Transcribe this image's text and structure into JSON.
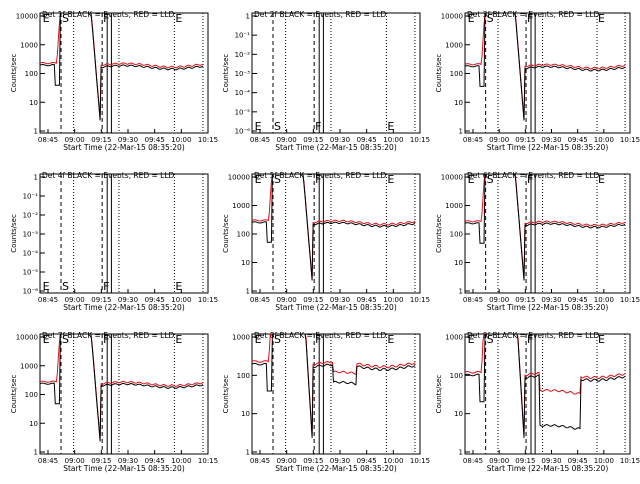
{
  "chart_data": [
    {
      "type": "line",
      "title": "Det 1f BLACK = Events, RED = LLD",
      "xlabel": "Start Time (22-Mar-15 08:35:20)",
      "ylabel": "Counts/sec",
      "yscale": "log",
      "ylim": [
        1,
        10000
      ],
      "yticks": [
        "10000",
        "1000",
        "100",
        "10",
        "1"
      ],
      "xticks": [
        "08:45",
        "09:00",
        "09:15",
        "09:30",
        "09:45",
        "10:00",
        "10:15"
      ],
      "xlim": [
        0,
        100
      ],
      "markers": [
        "E",
        "S",
        "F",
        "E"
      ],
      "series": []
    },
    {
      "type": "line",
      "title": "Det 2f BLACK = Events, RED = LLD",
      "xlabel": "Start Time (22-Mar-15 08:35:20)",
      "ylabel": "Counts/sec",
      "yscale": "log",
      "ylim": [
        1e-06,
        1
      ],
      "yticks": [
        "1",
        "10⁻¹",
        "10⁻²",
        "10⁻³",
        "10⁻⁴",
        "10⁻⁵",
        "10⁻⁶"
      ],
      "xticks": [
        "08:45",
        "09:00",
        "09:15",
        "09:30",
        "09:45",
        "10:00",
        "10:15"
      ],
      "xlim": [
        0,
        100
      ],
      "markers": [
        "E",
        "S",
        "F",
        "E"
      ],
      "series": []
    },
    {
      "type": "line",
      "title": "Det 3f BLACK = Events, RED = LLD",
      "xlabel": "Start Time (22-Mar-15 08:35:20)",
      "ylabel": "Counts/sec",
      "yscale": "log",
      "ylim": [
        1,
        10000
      ],
      "yticks": [
        "10000",
        "1000",
        "100",
        "10",
        "1"
      ],
      "xticks": [
        "08:45",
        "09:00",
        "09:15",
        "09:30",
        "09:45",
        "10:00",
        "10:15"
      ],
      "xlim": [
        0,
        100
      ],
      "markers": [
        "E",
        "S",
        "F",
        "E"
      ],
      "series": []
    },
    {
      "type": "line",
      "title": "Det 4f BLACK = Events, RED = LLD",
      "xlabel": "Start Time (22-Mar-15 08:35:20)",
      "ylabel": "Counts/sec",
      "yscale": "log",
      "ylim": [
        1e-06,
        1
      ],
      "yticks": [
        "1",
        "10⁻¹",
        "10⁻²",
        "10⁻³",
        "10⁻⁴",
        "10⁻⁵",
        "10⁻⁶"
      ],
      "xticks": [
        "08:45",
        "09:00",
        "09:15",
        "09:30",
        "09:45",
        "10:00",
        "10:15"
      ],
      "xlim": [
        0,
        100
      ],
      "markers": [
        "E",
        "S",
        "F",
        "E"
      ],
      "series": []
    },
    {
      "type": "line",
      "title": "Det 5f BLACK = Events, RED = LLD",
      "xlabel": "Start Time (22-Mar-15 08:35:20)",
      "ylabel": "Counts/sec",
      "yscale": "log",
      "ylim": [
        1,
        10000
      ],
      "yticks": [
        "10000",
        "1000",
        "100",
        "10",
        "1"
      ],
      "xticks": [
        "08:45",
        "09:00",
        "09:15",
        "09:30",
        "09:45",
        "10:00",
        "10:15"
      ],
      "xlim": [
        0,
        100
      ],
      "markers": [
        "E",
        "S",
        "F",
        "E"
      ],
      "series": []
    },
    {
      "type": "line",
      "title": "Det 6f BLACK = Events, RED = LLD",
      "xlabel": "Start Time (22-Mar-15 08:35:20)",
      "ylabel": "Counts/sec",
      "yscale": "log",
      "ylim": [
        1,
        10000
      ],
      "yticks": [
        "10000",
        "1000",
        "100",
        "10",
        "1"
      ],
      "xticks": [
        "08:45",
        "09:00",
        "09:15",
        "09:30",
        "09:45",
        "10:00",
        "10:15"
      ],
      "xlim": [
        0,
        100
      ],
      "markers": [
        "E",
        "S",
        "F",
        "E"
      ],
      "series": []
    },
    {
      "type": "line",
      "title": "Det 7f BLACK = Events, RED = LLD",
      "xlabel": "Start Time (22-Mar-15 08:35:20)",
      "ylabel": "Counts/sec",
      "yscale": "log",
      "ylim": [
        1,
        10000
      ],
      "yticks": [
        "10000",
        "1000",
        "100",
        "10",
        "1"
      ],
      "xticks": [
        "08:45",
        "09:00",
        "09:15",
        "09:30",
        "09:45",
        "10:00",
        "10:15"
      ],
      "xlim": [
        0,
        100
      ],
      "markers": [
        "E",
        "S",
        "F",
        "E"
      ],
      "series": []
    },
    {
      "type": "line",
      "title": "Det 8f BLACK = Events, RED = LLD",
      "xlabel": "Start Time (22-Mar-15 08:35:20)",
      "ylabel": "Counts/sec",
      "yscale": "log",
      "ylim": [
        1,
        1000
      ],
      "yticks": [
        "1000",
        "100",
        "10",
        "1"
      ],
      "xticks": [
        "08:45",
        "09:00",
        "09:15",
        "09:30",
        "09:45",
        "10:00",
        "10:15"
      ],
      "xlim": [
        0,
        100
      ],
      "markers": [
        "E",
        "S",
        "F",
        "E"
      ],
      "series": []
    },
    {
      "type": "line",
      "title": "Det 9f BLACK = Events, RED = LLD",
      "xlabel": "Start Time (22-Mar-15 08:35:20)",
      "ylabel": "Counts/sec",
      "yscale": "log",
      "ylim": [
        1,
        1000
      ],
      "yticks": [
        "1000",
        "100",
        "10",
        "1"
      ],
      "xticks": [
        "08:45",
        "09:00",
        "09:15",
        "09:30",
        "09:45",
        "10:00",
        "10:15"
      ],
      "xlim": [
        0,
        100
      ],
      "markers": [
        "E",
        "S",
        "F",
        "E"
      ],
      "series": []
    }
  ]
}
